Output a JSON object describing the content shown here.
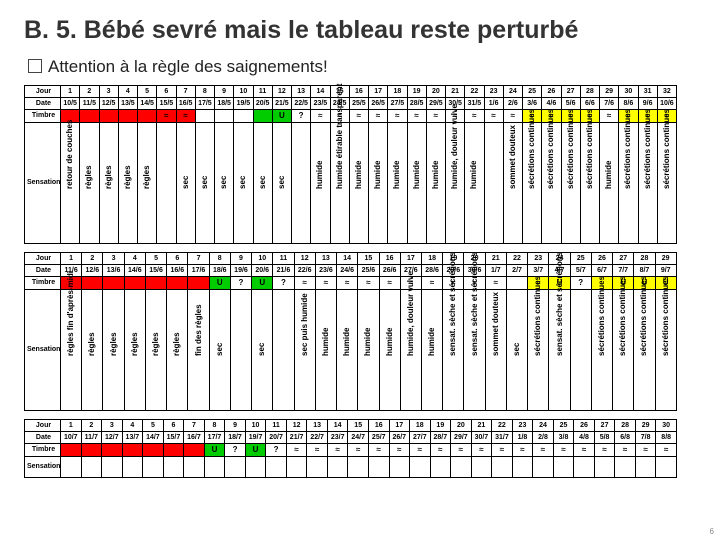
{
  "title": "B. 5. Bébé sevré mais le tableau reste perturbé",
  "subtitle_prefix": "Attention",
  "subtitle_rest": "à la règle des saignements!",
  "row_labels": {
    "jour": "Jour",
    "date": "Date",
    "timbre": "Timbre",
    "sensation": "Sensation"
  },
  "colors": {
    "red": "#ff0000",
    "green": "#00cc00",
    "yellow": "#ffff00",
    "border": "#000000",
    "bg": "#ffffff"
  },
  "tables": [
    {
      "days": [
        "1",
        "2",
        "3",
        "4",
        "5",
        "6",
        "7",
        "8",
        "9",
        "10",
        "11",
        "12",
        "13",
        "14",
        "15",
        "16",
        "17",
        "18",
        "19",
        "20",
        "21",
        "22",
        "23",
        "24",
        "25",
        "26",
        "27",
        "28",
        "29",
        "30",
        "31",
        "32"
      ],
      "dates": [
        "10/5",
        "11/5",
        "12/5",
        "13/5",
        "14/5",
        "15/5",
        "16/5",
        "17/5",
        "18/5",
        "19/5",
        "20/5",
        "21/5",
        "22/5",
        "23/5",
        "24/5",
        "25/5",
        "26/5",
        "27/5",
        "28/5",
        "29/5",
        "30/5",
        "31/5",
        "1/6",
        "2/6",
        "3/6",
        "4/6",
        "5/6",
        "6/6",
        "7/6",
        "8/6",
        "9/6",
        "10/6"
      ],
      "cells": [
        {
          "c": "red"
        },
        {
          "c": "red"
        },
        {
          "c": "red"
        },
        {
          "c": "red"
        },
        {
          "c": "red"
        },
        {
          "c": "red",
          "s": "≈"
        },
        {
          "c": "red",
          "s": "≈"
        },
        {
          "c": "",
          "s": ""
        },
        {
          "c": "",
          "s": ""
        },
        {
          "c": "",
          "s": ""
        },
        {
          "c": "grn",
          "s": ""
        },
        {
          "c": "grn",
          "s": "U"
        },
        {
          "c": "",
          "s": "?"
        },
        {
          "c": "",
          "s": "≈"
        },
        {
          "c": "",
          "s": "≈"
        },
        {
          "c": "",
          "s": "≈"
        },
        {
          "c": "",
          "s": "≈"
        },
        {
          "c": "",
          "s": "≈"
        },
        {
          "c": "",
          "s": "≈"
        },
        {
          "c": "",
          "s": "≈"
        },
        {
          "c": "",
          "s": "≈"
        },
        {
          "c": "",
          "s": "≈"
        },
        {
          "c": "",
          "s": "≈"
        },
        {
          "c": "",
          "s": "≈"
        },
        {
          "c": "yel",
          "s": "≈"
        },
        {
          "c": "yel",
          "s": "≈"
        },
        {
          "c": "yel",
          "s": "≈"
        },
        {
          "c": "yel",
          "s": "≈"
        },
        {
          "c": "",
          "s": "≈"
        },
        {
          "c": "yel",
          "s": "≈"
        },
        {
          "c": "yel",
          "s": "≈"
        },
        {
          "c": "yel",
          "s": "≈"
        }
      ],
      "sens": [
        "retour de couches",
        "règles",
        "règles",
        "règles",
        "règles",
        "",
        "sec",
        "sec",
        "sec",
        "sec",
        "sec",
        "sec",
        "",
        "humide",
        "humide étirable transparent",
        "humide",
        "humide",
        "humide",
        "humide",
        "humide",
        "humide, douleur vulve",
        "humide",
        "",
        "sommet douteux",
        "sécrétions continues",
        "sécrétions continues",
        "sécrétions continues",
        "sécrétions continues",
        "humide",
        "sécrétions continues",
        "sécrétions continues",
        "sécrétions continues"
      ]
    },
    {
      "days": [
        "1",
        "2",
        "3",
        "4",
        "5",
        "6",
        "7",
        "8",
        "9",
        "10",
        "11",
        "12",
        "13",
        "14",
        "15",
        "16",
        "17",
        "18",
        "19",
        "20",
        "21",
        "22",
        "23",
        "24",
        "25",
        "26",
        "27",
        "28",
        "29"
      ],
      "dates": [
        "11/6",
        "12/6",
        "13/6",
        "14/6",
        "15/6",
        "16/6",
        "17/6",
        "18/6",
        "19/6",
        "20/6",
        "21/6",
        "22/6",
        "23/6",
        "24/6",
        "25/6",
        "26/6",
        "27/6",
        "28/6",
        "29/6",
        "30/6",
        "1/7",
        "2/7",
        "3/7",
        "4/7",
        "5/7",
        "6/7",
        "7/7",
        "8/7",
        "9/7"
      ],
      "cells": [
        {
          "c": "red"
        },
        {
          "c": "red"
        },
        {
          "c": "red"
        },
        {
          "c": "red"
        },
        {
          "c": "red"
        },
        {
          "c": "red"
        },
        {
          "c": "red"
        },
        {
          "c": "grn",
          "s": "U"
        },
        {
          "c": "",
          "s": "?"
        },
        {
          "c": "grn",
          "s": "U"
        },
        {
          "c": "",
          "s": "?"
        },
        {
          "c": "",
          "s": "≈"
        },
        {
          "c": "",
          "s": "≈"
        },
        {
          "c": "",
          "s": "≈"
        },
        {
          "c": "",
          "s": "≈"
        },
        {
          "c": "",
          "s": "≈"
        },
        {
          "c": "",
          "s": "≈"
        },
        {
          "c": "",
          "s": "≈"
        },
        {
          "c": "",
          "s": "≈"
        },
        {
          "c": "",
          "s": "≈"
        },
        {
          "c": "",
          "s": "≈"
        },
        {
          "c": "",
          "s": ""
        },
        {
          "c": "yel",
          "s": "≈"
        },
        {
          "c": "yel",
          "s": "U"
        },
        {
          "c": "",
          "s": "?"
        },
        {
          "c": "yel",
          "s": ""
        },
        {
          "c": "yel",
          "s": "U"
        },
        {
          "c": "yel",
          "s": "U"
        },
        {
          "c": "yel",
          "s": "U"
        }
      ],
      "sens": [
        "règles fin d'après-midi",
        "règles",
        "règles",
        "règles",
        "règles",
        "règles",
        "fin des règles",
        "sec",
        "",
        "sec",
        "",
        "sec puis humide",
        "humide",
        "humide",
        "humide",
        "humide",
        "humide, douleur vulve",
        "humide",
        "sensat. sèche et sécrétions",
        "sensat. sèche et sécrétions",
        "sommet douteux",
        "sec",
        "sécrétions continues",
        "sensat. sèche et sécrétions",
        "",
        "sécrétions continues",
        "sécrétions continues",
        "sécrétions continues",
        "sécrétions continues"
      ]
    },
    {
      "days": [
        "1",
        "2",
        "3",
        "4",
        "5",
        "6",
        "7",
        "8",
        "9",
        "10",
        "11",
        "12",
        "13",
        "14",
        "15",
        "16",
        "17",
        "18",
        "19",
        "20",
        "21",
        "22",
        "23",
        "24",
        "25",
        "26",
        "27",
        "28",
        "29",
        "30"
      ],
      "dates": [
        "10/7",
        "11/7",
        "12/7",
        "13/7",
        "14/7",
        "15/7",
        "16/7",
        "17/7",
        "18/7",
        "19/7",
        "20/7",
        "21/7",
        "22/7",
        "23/7",
        "24/7",
        "25/7",
        "26/7",
        "27/7",
        "28/7",
        "29/7",
        "30/7",
        "31/7",
        "1/8",
        "2/8",
        "3/8",
        "4/8",
        "5/8",
        "6/8",
        "7/8",
        "8/8"
      ],
      "cells": [
        {
          "c": "red"
        },
        {
          "c": "red"
        },
        {
          "c": "red"
        },
        {
          "c": "red"
        },
        {
          "c": "red"
        },
        {
          "c": "red"
        },
        {
          "c": "red"
        },
        {
          "c": "grn",
          "s": "U"
        },
        {
          "c": "",
          "s": "?"
        },
        {
          "c": "grn",
          "s": "U"
        },
        {
          "c": "",
          "s": "?"
        },
        {
          "c": "",
          "s": "≈"
        },
        {
          "c": "",
          "s": "≈"
        },
        {
          "c": "",
          "s": "≈"
        },
        {
          "c": "",
          "s": "≈"
        },
        {
          "c": "",
          "s": "≈"
        },
        {
          "c": "",
          "s": "≈"
        },
        {
          "c": "",
          "s": "≈"
        },
        {
          "c": "",
          "s": "≈"
        },
        {
          "c": "",
          "s": "≈"
        },
        {
          "c": "",
          "s": "≈"
        },
        {
          "c": "",
          "s": "≈"
        },
        {
          "c": "",
          "s": "≈"
        },
        {
          "c": "",
          "s": "≈"
        },
        {
          "c": "",
          "s": "≈"
        },
        {
          "c": "",
          "s": "≈"
        },
        {
          "c": "",
          "s": "≈"
        },
        {
          "c": "",
          "s": "≈"
        },
        {
          "c": "",
          "s": "≈"
        },
        {
          "c": "",
          "s": "≈"
        }
      ],
      "sens": []
    }
  ],
  "pageno": "6"
}
